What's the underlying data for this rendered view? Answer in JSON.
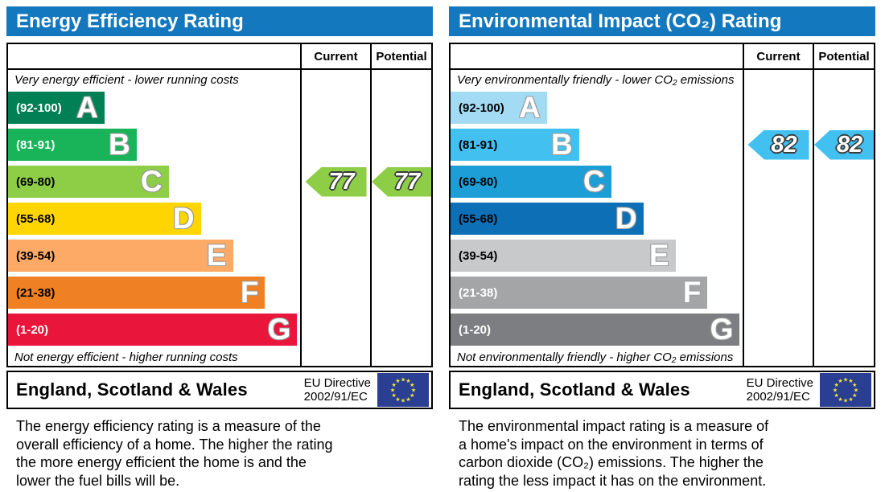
{
  "colors": {
    "header_blue": "#1478be",
    "eu_flag_blue": "#2b3f92",
    "eu_flag_star": "#f7e63c"
  },
  "left_panel": {
    "title": "Energy Efficiency Rating",
    "columns": {
      "current": "Current",
      "potential": "Potential"
    },
    "top_note": "Very energy efficient - lower running costs",
    "bottom_note": "Not energy efficient - higher running costs",
    "bands": [
      {
        "letter": "A",
        "range": "(92-100)",
        "color": "#008054",
        "text_color": "#ffffff",
        "width_pct": 33
      },
      {
        "letter": "B",
        "range": "(81-91)",
        "color": "#19b459",
        "text_color": "#ffffff",
        "width_pct": 44
      },
      {
        "letter": "C",
        "range": "(69-80)",
        "color": "#8dce46",
        "text_color": "#000000",
        "width_pct": 55
      },
      {
        "letter": "D",
        "range": "(55-68)",
        "color": "#ffd500",
        "text_color": "#000000",
        "width_pct": 66
      },
      {
        "letter": "E",
        "range": "(39-54)",
        "color": "#fcaa65",
        "text_color": "#000000",
        "width_pct": 77
      },
      {
        "letter": "F",
        "range": "(21-38)",
        "color": "#ef8023",
        "text_color": "#000000",
        "width_pct": 88
      },
      {
        "letter": "G",
        "range": "(1-20)",
        "color": "#e9153b",
        "text_color": "#ffffff",
        "width_pct": 99
      }
    ],
    "current": {
      "value": "77",
      "color": "#8dce46",
      "band": "C"
    },
    "potential": {
      "value": "77",
      "color": "#8dce46",
      "band": "C"
    },
    "footer": {
      "region": "England, Scotland & Wales",
      "directive_line1": "EU Directive",
      "directive_line2": "2002/91/EC"
    },
    "description": "The energy efficiency rating is a measure of the\noverall efficiency of a home. The higher the rating\nthe more energy efficient the home is and the\nlower the fuel bills will be."
  },
  "right_panel": {
    "title": "Environmental Impact (CO₂) Rating",
    "columns": {
      "current": "Current",
      "potential": "Potential"
    },
    "top_note": "Very environmentally friendly - lower CO₂ emissions",
    "bottom_note": "Not environmentally friendly - higher CO₂ emissions",
    "bands": [
      {
        "letter": "A",
        "range": "(92-100)",
        "color": "#a3dbf4",
        "text_color": "#000000",
        "width_pct": 33
      },
      {
        "letter": "B",
        "range": "(81-91)",
        "color": "#42c0f0",
        "text_color": "#000000",
        "width_pct": 44
      },
      {
        "letter": "C",
        "range": "(69-80)",
        "color": "#1e9ed6",
        "text_color": "#000000",
        "width_pct": 55
      },
      {
        "letter": "D",
        "range": "(55-68)",
        "color": "#0d6fb6",
        "text_color": "#000000",
        "width_pct": 66
      },
      {
        "letter": "E",
        "range": "(39-54)",
        "color": "#c8c9cb",
        "text_color": "#000000",
        "width_pct": 77
      },
      {
        "letter": "F",
        "range": "(21-38)",
        "color": "#a3a5a7",
        "text_color": "#ffffff",
        "width_pct": 88
      },
      {
        "letter": "G",
        "range": "(1-20)",
        "color": "#7c7e81",
        "text_color": "#ffffff",
        "width_pct": 99
      }
    ],
    "current": {
      "value": "82",
      "color": "#42c0f0",
      "band": "B"
    },
    "potential": {
      "value": "82",
      "color": "#42c0f0",
      "band": "B"
    },
    "footer": {
      "region": "England, Scotland & Wales",
      "directive_line1": "EU Directive",
      "directive_line2": "2002/91/EC"
    },
    "description": "The environmental impact rating is a measure of\na home's impact on the environment in terms of\ncarbon dioxide (CO₂) emissions. The higher the\nrating the less impact it has on the environment."
  },
  "chart_data": [
    {
      "type": "bar",
      "title": "Energy Efficiency Rating",
      "categories": [
        "A (92-100)",
        "B (81-91)",
        "C (69-80)",
        "D (55-68)",
        "E (39-54)",
        "F (21-38)",
        "G (1-20)"
      ],
      "band_widths_pct": [
        33,
        44,
        55,
        66,
        77,
        88,
        99
      ],
      "band_colors": [
        "#008054",
        "#19b459",
        "#8dce46",
        "#ffd500",
        "#fcaa65",
        "#ef8023",
        "#e9153b"
      ],
      "current": 77,
      "potential": 77,
      "current_band": "C",
      "potential_band": "C",
      "top_label": "Very energy efficient - lower running costs",
      "bottom_label": "Not energy efficient - higher running costs",
      "footer": "England, Scotland & Wales",
      "directive": "EU Directive 2002/91/EC"
    },
    {
      "type": "bar",
      "title": "Environmental Impact (CO₂) Rating",
      "categories": [
        "A (92-100)",
        "B (81-91)",
        "C (69-80)",
        "D (55-68)",
        "E (39-54)",
        "F (21-38)",
        "G (1-20)"
      ],
      "band_widths_pct": [
        33,
        44,
        55,
        66,
        77,
        88,
        99
      ],
      "band_colors": [
        "#a3dbf4",
        "#42c0f0",
        "#1e9ed6",
        "#0d6fb6",
        "#c8c9cb",
        "#a3a5a7",
        "#7c7e81"
      ],
      "current": 82,
      "potential": 82,
      "current_band": "B",
      "potential_band": "B",
      "top_label": "Very environmentally friendly - lower CO₂ emissions",
      "bottom_label": "Not environmentally friendly - higher CO₂ emissions",
      "footer": "England, Scotland & Wales",
      "directive": "EU Directive 2002/91/EC"
    }
  ]
}
